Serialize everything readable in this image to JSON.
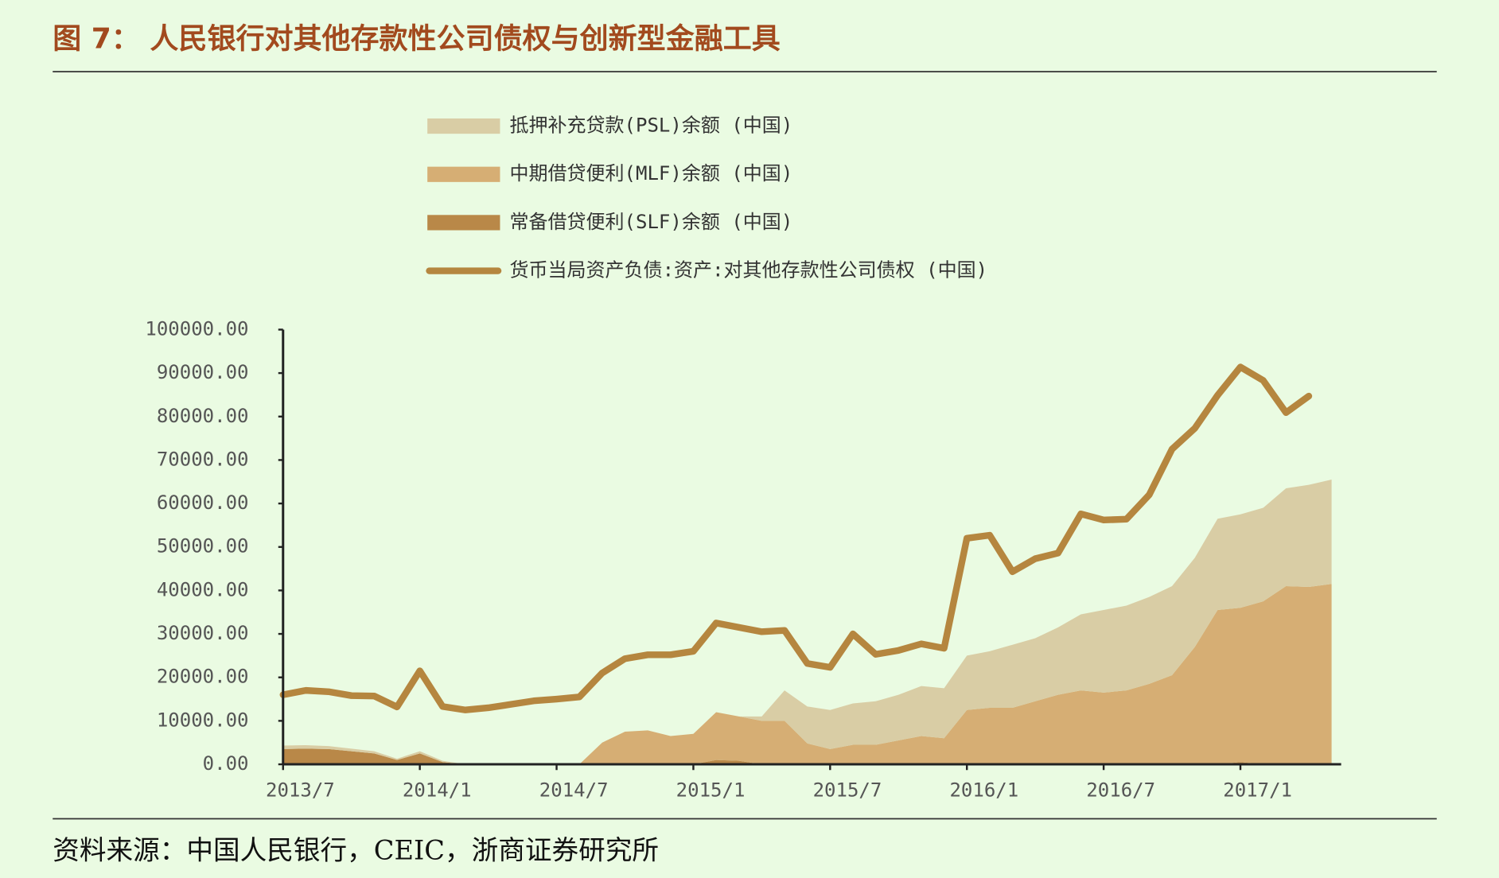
{
  "chart_data": {
    "type": "area",
    "title": "图 7：  人民银行对其他存款性公司债权与创新型金融工具",
    "source": "资料来源：中国人民银行，CEIC，浙商证券研究所",
    "categories": [
      "2013/7",
      null,
      null,
      null,
      null,
      null,
      "2014/1",
      null,
      null,
      null,
      null,
      null,
      "2014/7",
      null,
      null,
      null,
      null,
      null,
      "2015/1",
      null,
      null,
      null,
      null,
      null,
      "2015/7",
      null,
      null,
      null,
      null,
      null,
      "2016/1",
      null,
      null,
      null,
      null,
      null,
      "2016/7",
      null,
      null,
      null,
      null,
      null,
      "2017/1",
      null,
      null,
      null,
      null
    ],
    "ylim": [
      0,
      100000
    ],
    "yticks": [
      {
        "value": 0,
        "label": "0.00"
      },
      {
        "value": 10000,
        "label": "10000.00"
      },
      {
        "value": 20000,
        "label": "20000.00"
      },
      {
        "value": 30000,
        "label": "30000.00"
      },
      {
        "value": 40000,
        "label": "40000.00"
      },
      {
        "value": 50000,
        "label": "50000.00"
      },
      {
        "value": 60000,
        "label": "60000.00"
      },
      {
        "value": 70000,
        "label": "70000.00"
      },
      {
        "value": 80000,
        "label": "80000.00"
      },
      {
        "value": 90000,
        "label": "90000.00"
      },
      {
        "value": 100000,
        "label": "100000.00"
      }
    ],
    "series": [
      {
        "name": "抵押补充贷款(PSL)余额 (中国)",
        "type": "area",
        "color": "#d9cda5",
        "values": [
          800,
          800,
          700,
          600,
          500,
          300,
          500,
          300,
          0,
          0,
          0,
          0,
          0,
          0,
          0,
          0,
          0,
          0,
          0,
          0,
          0,
          1000,
          7000,
          8500,
          9000,
          9500,
          10000,
          10500,
          11500,
          11500,
          12500,
          13000,
          14500,
          14500,
          15500,
          17500,
          19000,
          19500,
          20000,
          20500,
          20500,
          21000,
          21500,
          21500,
          22500,
          23500,
          24000
        ]
      },
      {
        "name": "中期借贷便利(MLF)余额 (中国)",
        "type": "area",
        "color": "#d6ae74",
        "values": [
          0,
          0,
          0,
          0,
          0,
          0,
          0,
          0,
          0,
          0,
          0,
          0,
          0,
          0,
          5000,
          7500,
          7800,
          6500,
          7000,
          11000,
          10200,
          10000,
          10000,
          4800,
          3500,
          4500,
          4500,
          5500,
          6500,
          6000,
          12500,
          13000,
          13000,
          14500,
          16000,
          17000,
          16500,
          17000,
          18500,
          20500,
          27000,
          35500,
          35500,
          37500,
          41000,
          40800,
          41500
        ]
      },
      {
        "name": "常备借贷便利(SLF)余额 (中国)",
        "type": "area",
        "color": "#b98848",
        "values": [
          3500,
          3600,
          3500,
          3000,
          2500,
          1000,
          2500,
          500,
          0,
          0,
          0,
          0,
          0,
          0,
          0,
          0,
          0,
          0,
          0,
          1000,
          800,
          0,
          0,
          0,
          0,
          0,
          0,
          0,
          0,
          0,
          0,
          0,
          0,
          0,
          0,
          0,
          0,
          0,
          0,
          0,
          0,
          0,
          500,
          0,
          0,
          0,
          0
        ]
      },
      {
        "name": "货币当局资产负债:资产:对其他存款性公司债权 (中国)",
        "type": "line",
        "color": "#b5863f",
        "values": [
          16000,
          17000,
          16700,
          15800,
          15700,
          13200,
          21500,
          13300,
          12500,
          13000,
          13800,
          14600,
          15000,
          15500,
          21000,
          24300,
          25200,
          25200,
          26000,
          32500,
          31500,
          30500,
          30800,
          23200,
          22300,
          30000,
          25300,
          26200,
          27700,
          26700,
          52000,
          52700,
          44300,
          47300,
          48600,
          57600,
          56200,
          56400,
          62000,
          72500,
          77300,
          84900,
          91400,
          88300,
          80900,
          84700,
          null
        ]
      }
    ]
  }
}
